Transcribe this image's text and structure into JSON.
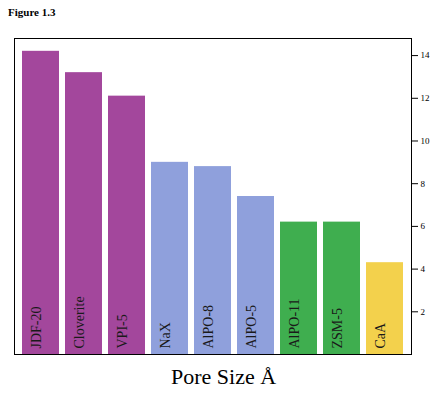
{
  "chart_data": {
    "type": "bar",
    "title": "Figure 1.3",
    "xlabel": "Pore Size Å",
    "categories": [
      "JDF-20",
      "Cloverite",
      "VPI-5",
      "NaX",
      "AlPO-8",
      "AlPO-5",
      "AlPO-11",
      "ZSM-5",
      "CaA"
    ],
    "values": [
      14.2,
      13.2,
      12.1,
      9.0,
      8.8,
      7.4,
      6.2,
      6.2,
      4.3
    ],
    "colors": [
      "#a3479c",
      "#a3479c",
      "#a3479c",
      "#8fa0dc",
      "#8fa0dc",
      "#8fa0dc",
      "#3fae4f",
      "#3fae4f",
      "#f3d14c"
    ],
    "ylim": [
      0,
      14.8
    ],
    "yticks": [
      2,
      4,
      6,
      8,
      10,
      12,
      14
    ],
    "grid": false
  }
}
